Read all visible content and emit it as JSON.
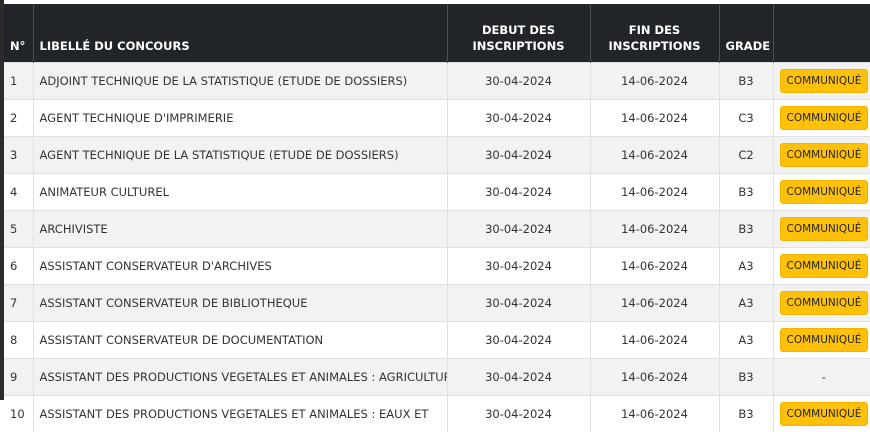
{
  "table": {
    "headers": [
      "N°",
      "LIBELLÉ DU CONCOURS",
      "DEBUT DES INSCRIPTIONS",
      "FIN DES INSCRIPTIONS",
      "GRADE",
      ""
    ],
    "rows": [
      {
        "num": "1",
        "label": "ADJOINT TECHNIQUE DE LA STATISTIQUE (ETUDE DE DOSSIERS)",
        "start": "30-04-2024",
        "end": "14-06-2024",
        "grade": "B3",
        "action": "COMMUNIQUÉ"
      },
      {
        "num": "2",
        "label": "AGENT TECHNIQUE D'IMPRIMERIE",
        "start": "30-04-2024",
        "end": "14-06-2024",
        "grade": "C3",
        "action": "COMMUNIQUÉ"
      },
      {
        "num": "3",
        "label": "AGENT TECHNIQUE DE LA STATISTIQUE (ETUDE DE DOSSIERS)",
        "start": "30-04-2024",
        "end": "14-06-2024",
        "grade": "C2",
        "action": "COMMUNIQUÉ"
      },
      {
        "num": "4",
        "label": "ANIMATEUR CULTUREL",
        "start": "30-04-2024",
        "end": "14-06-2024",
        "grade": "B3",
        "action": "COMMUNIQUÉ"
      },
      {
        "num": "5",
        "label": "ARCHIVISTE",
        "start": "30-04-2024",
        "end": "14-06-2024",
        "grade": "B3",
        "action": "COMMUNIQUÉ"
      },
      {
        "num": "6",
        "label": "ASSISTANT CONSERVATEUR D'ARCHIVES",
        "start": "30-04-2024",
        "end": "14-06-2024",
        "grade": "A3",
        "action": "COMMUNIQUÉ"
      },
      {
        "num": "7",
        "label": "ASSISTANT CONSERVATEUR DE BIBLIOTHEQUE",
        "start": "30-04-2024",
        "end": "14-06-2024",
        "grade": "A3",
        "action": "COMMUNIQUÉ"
      },
      {
        "num": "8",
        "label": "ASSISTANT CONSERVATEUR DE DOCUMENTATION",
        "start": "30-04-2024",
        "end": "14-06-2024",
        "grade": "A3",
        "action": "COMMUNIQUÉ"
      },
      {
        "num": "9",
        "label": "ASSISTANT DES PRODUCTIONS VEGETALES ET ANIMALES : AGRICULTURE",
        "start": "30-04-2024",
        "end": "14-06-2024",
        "grade": "B3",
        "action": "-"
      },
      {
        "num": "10",
        "label": "ASSISTANT DES PRODUCTIONS VEGETALES ET ANIMALES : EAUX ET",
        "start": "30-04-2024",
        "end": "14-06-2024",
        "grade": "B3",
        "action": "COMMUNIQUÉ"
      }
    ]
  },
  "colors": {
    "header_bg": "#212529",
    "button_bg": "#ffc107",
    "stripe": "#f2f2f2"
  }
}
